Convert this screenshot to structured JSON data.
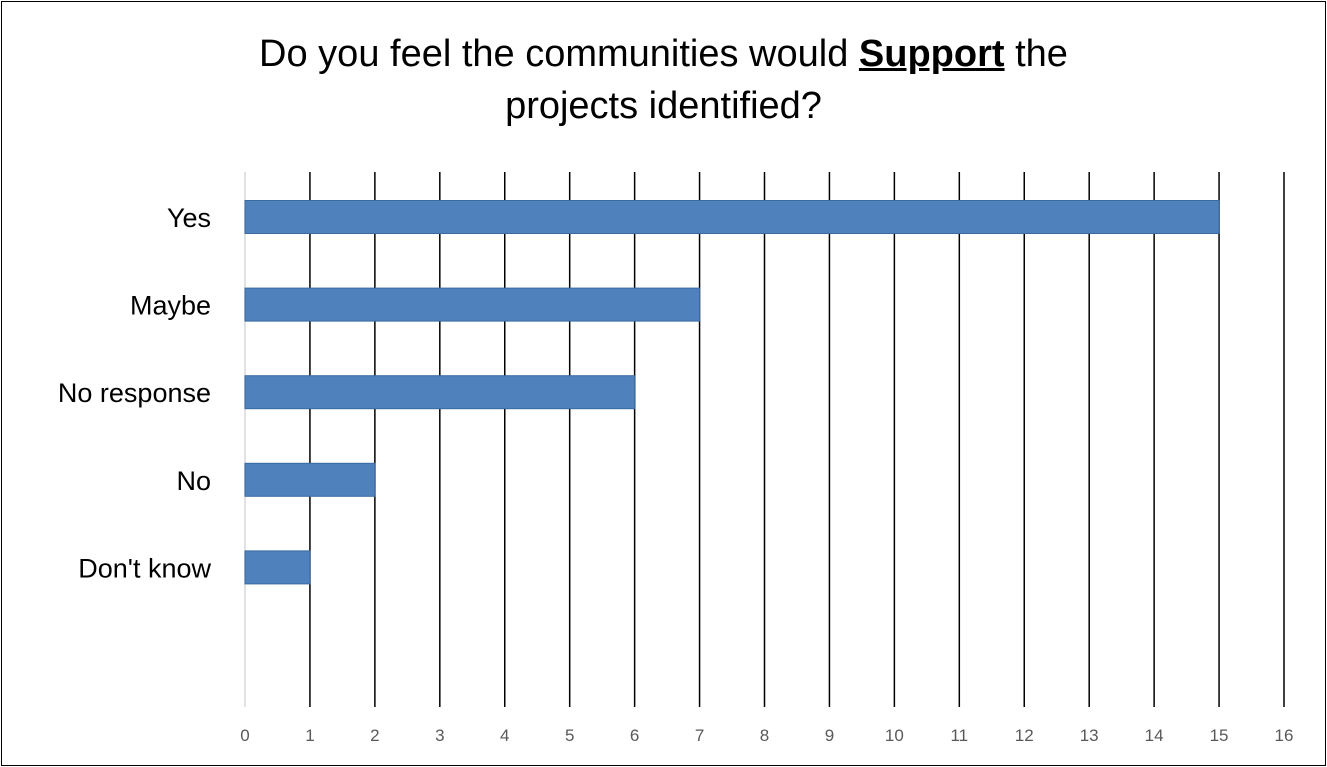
{
  "chart_data": {
    "type": "bar",
    "orientation": "horizontal",
    "title": {
      "before": "Do you feel the communities would ",
      "emphasis": "Support",
      "after": " the",
      "line2": "projects identified?"
    },
    "categories": [
      "Yes",
      "Maybe",
      "No response",
      "No",
      "Don't know"
    ],
    "values": [
      15,
      7,
      6,
      2,
      1
    ],
    "xlim": [
      0,
      16
    ],
    "xticks": [
      "0",
      "1",
      "2",
      "3",
      "4",
      "5",
      "6",
      "7",
      "8",
      "9",
      "10",
      "11",
      "12",
      "13",
      "14",
      "15",
      "16"
    ],
    "grid": true,
    "legend": "none",
    "bar_color": "#4F81BD",
    "bar_border_color": "#3A6AA0",
    "grid_color": "#000000",
    "axis_color": "#D9D9D9",
    "tick_label_color": "#595959"
  }
}
